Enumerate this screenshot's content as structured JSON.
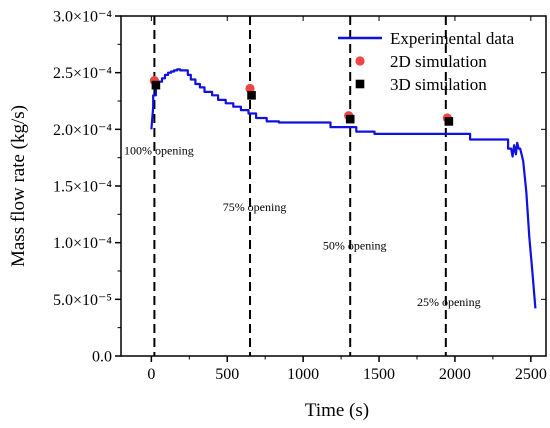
{
  "chart_data": {
    "type": "line",
    "xlabel": "Time (s)",
    "ylabel": "Mass flow rate (kg/s)",
    "xlim": [
      -200,
      2600
    ],
    "ylim": [
      0,
      0.0003
    ],
    "xticks": [
      0,
      500,
      1000,
      1500,
      2000,
      2500
    ],
    "xtick_labels": [
      "0",
      "500",
      "1000",
      "1500",
      "2000",
      "2500"
    ],
    "yticks": [
      0,
      5e-05,
      0.0001,
      0.00015,
      0.0002,
      0.00025,
      0.0003
    ],
    "ytick_labels": [
      "0.0",
      "5.0×10⁻⁵",
      "1.0×10⁻⁴",
      "1.5×10⁻⁴",
      "2.0×10⁻⁴",
      "2.5×10⁻⁴",
      "3.0×10⁻⁴"
    ],
    "grid": false,
    "legend_position": "top-right",
    "colors": {
      "experimental": "#1010e0",
      "sim2d": "#f04545",
      "sim3d": "#000000",
      "vline": "#000000"
    },
    "series": [
      {
        "name": "Experimental data",
        "kind": "line",
        "x": [
          0,
          12,
          12,
          30,
          30,
          50,
          50,
          70,
          70,
          90,
          90,
          110,
          110,
          130,
          130,
          150,
          150,
          170,
          170,
          190,
          190,
          240,
          240,
          260,
          260,
          290,
          290,
          320,
          320,
          350,
          350,
          400,
          400,
          440,
          440,
          490,
          490,
          540,
          540,
          590,
          590,
          640,
          640,
          690,
          690,
          760,
          760,
          840,
          840,
          1180,
          1180,
          1350,
          1350,
          1470,
          1470,
          2100,
          2100,
          2350,
          2350,
          2370,
          2380,
          2390,
          2395,
          2402,
          2410,
          2420,
          2430,
          2450,
          2470,
          2490,
          2510,
          2530
        ],
        "y": [
          0.0002,
          0.00022,
          0.00023,
          0.00023,
          0.000237,
          0.000237,
          0.000242,
          0.000242,
          0.000245,
          0.000245,
          0.000248,
          0.000248,
          0.00025,
          0.00025,
          0.000251,
          0.000251,
          0.000252,
          0.000252,
          0.000253,
          0.000253,
          0.000252,
          0.000252,
          0.000248,
          0.000248,
          0.000244,
          0.000244,
          0.00024,
          0.00024,
          0.000237,
          0.000237,
          0.000233,
          0.000233,
          0.00023,
          0.00023,
          0.000226,
          0.000226,
          0.000223,
          0.000223,
          0.00022,
          0.00022,
          0.000217,
          0.000217,
          0.000214,
          0.000214,
          0.00021,
          0.00021,
          0.000207,
          0.000207,
          0.000206,
          0.000206,
          0.000202,
          0.000202,
          0.000198,
          0.000198,
          0.000196,
          0.000196,
          0.000191,
          0.000191,
          0.000183,
          0.000183,
          0.000176,
          0.000186,
          0.000183,
          0.000178,
          0.000188,
          0.000183,
          0.000183,
          0.000172,
          0.000145,
          0.000105,
          7.5e-05,
          4.2e-05
        ]
      },
      {
        "name": "2D simulation",
        "kind": "scatter",
        "marker": "circle",
        "x": [
          20,
          650,
          1300,
          1950
        ],
        "y": [
          0.000243,
          0.000236,
          0.000212,
          0.00021
        ]
      },
      {
        "name": "3D simulation",
        "kind": "scatter",
        "marker": "square",
        "x": [
          30,
          660,
          1310,
          1960
        ],
        "y": [
          0.000239,
          0.00023,
          0.000209,
          0.000207
        ]
      }
    ],
    "vlines": [
      20,
      650,
      1310,
      1940
    ],
    "annotations": [
      {
        "text": "100% opening",
        "x": -180,
        "y": 0.000178
      },
      {
        "text": "75% opening",
        "x": 470,
        "y": 0.000128
      },
      {
        "text": "50% opening",
        "x": 1130,
        "y": 9.4e-05
      },
      {
        "text": "25% opening",
        "x": 1750,
        "y": 4.4e-05
      }
    ]
  }
}
